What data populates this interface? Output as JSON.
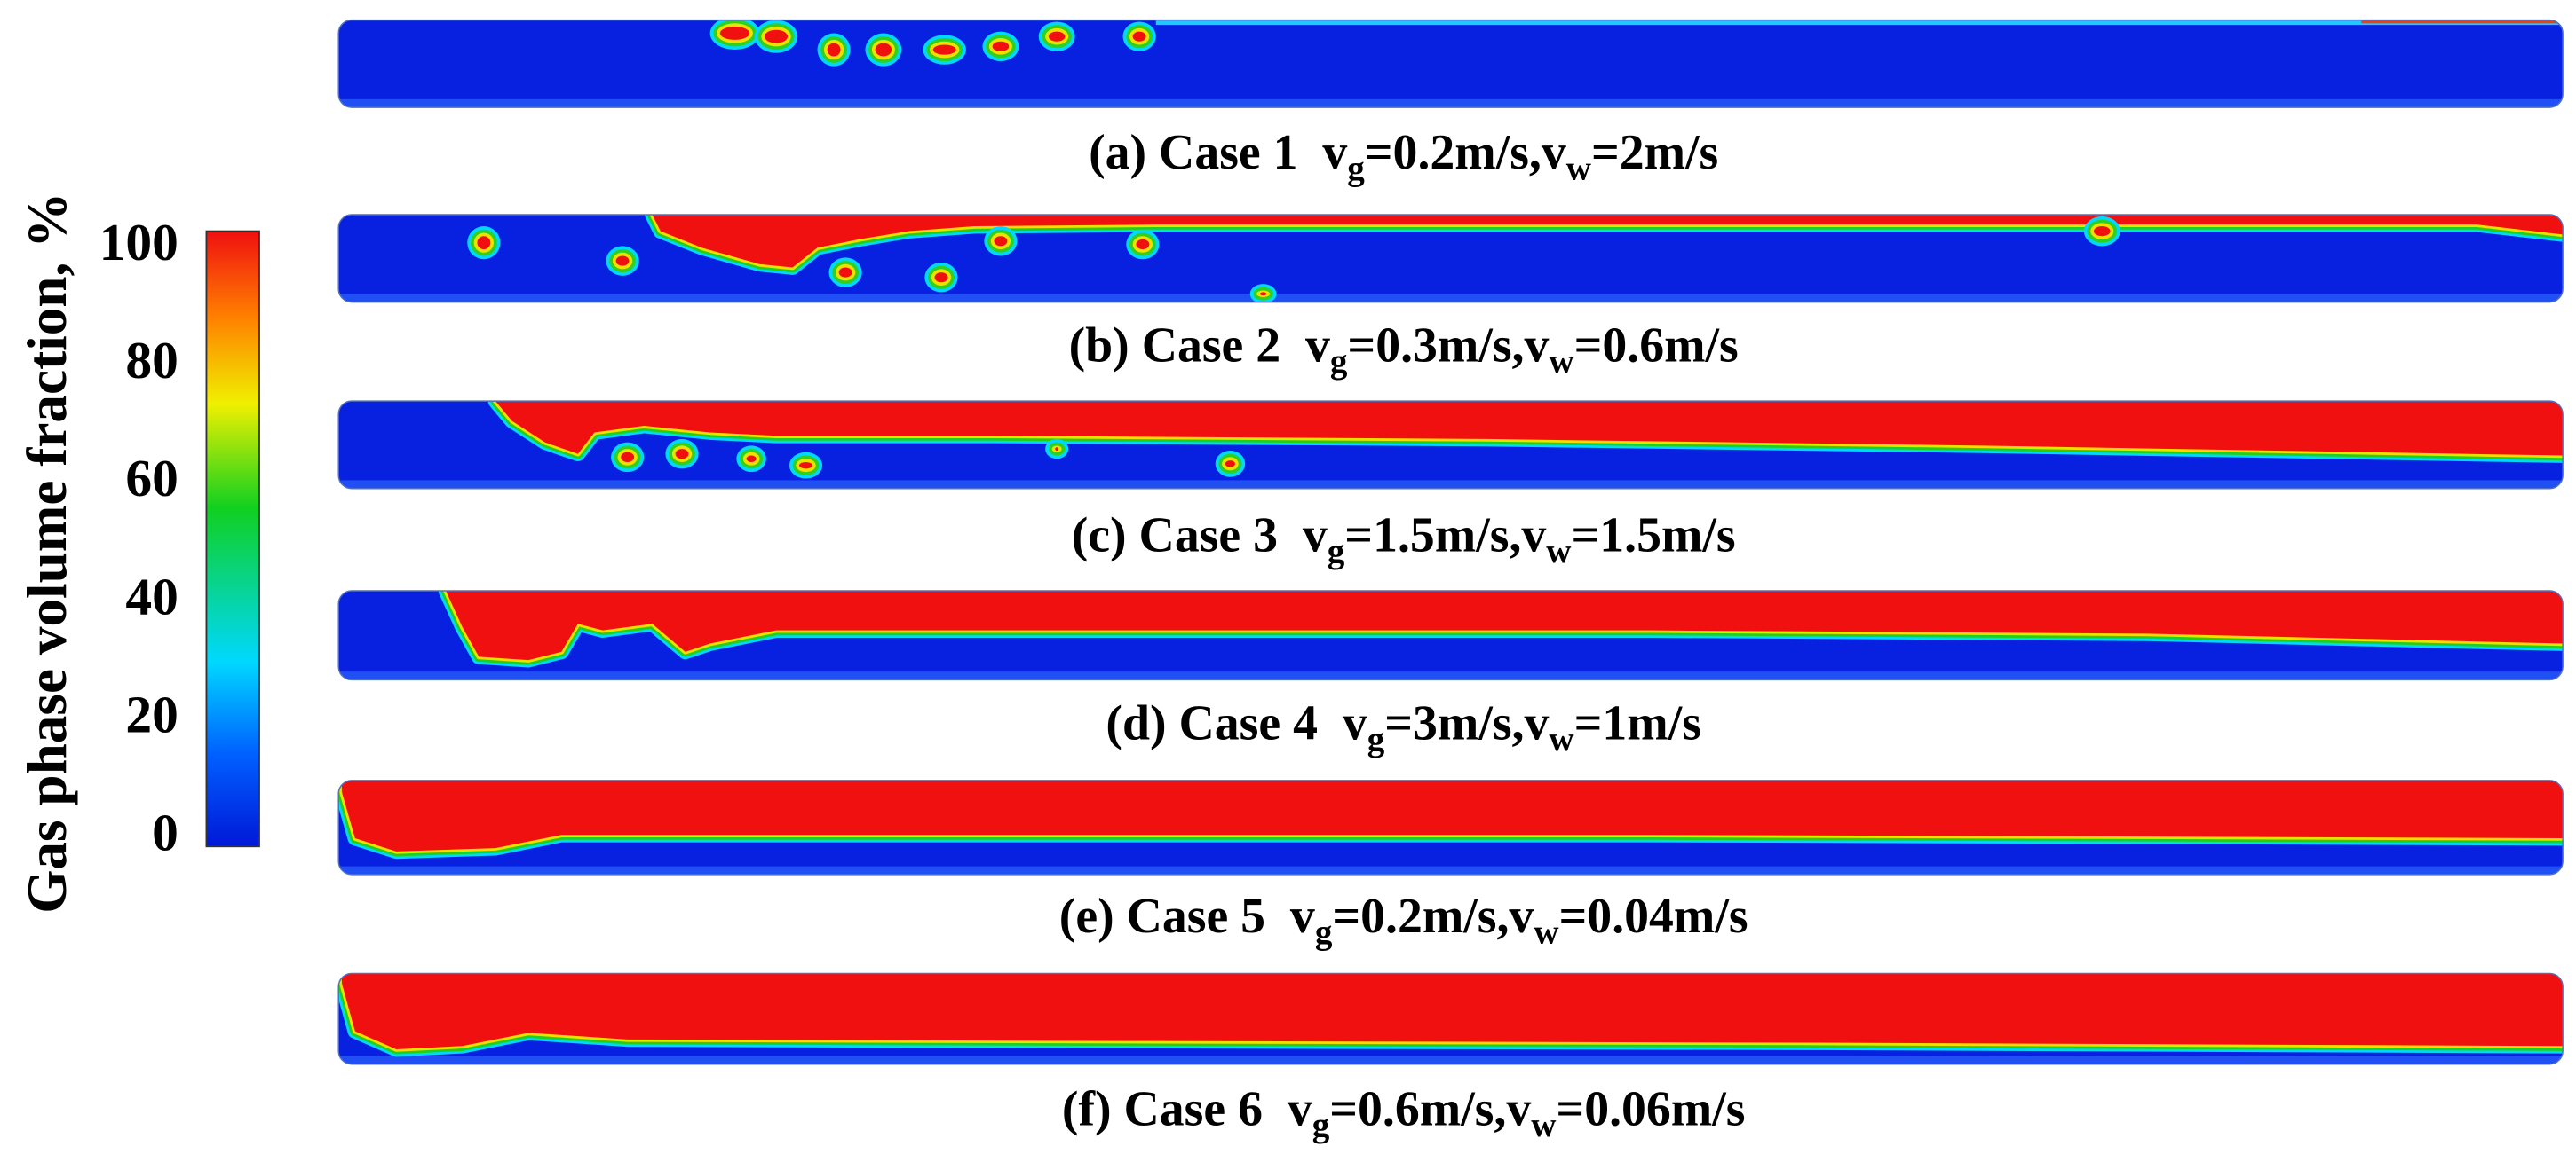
{
  "colorbar": {
    "label": "Gas phase volume fraction, %",
    "range": [
      0,
      100
    ],
    "ticks": [
      0,
      20,
      40,
      60,
      80,
      100
    ]
  },
  "panels": [
    {
      "caption": [
        {
          "text": "(a) Case 1  v"
        },
        {
          "text": "g",
          "sub": true
        },
        {
          "text": "=0.2m/s,v"
        },
        {
          "text": "w",
          "sub": true
        },
        {
          "text": "=2m/s"
        }
      ]
    },
    {
      "caption": [
        {
          "text": "(b) Case 2  v"
        },
        {
          "text": "g",
          "sub": true
        },
        {
          "text": "=0.3m/s,v"
        },
        {
          "text": "w",
          "sub": true
        },
        {
          "text": "=0.6m/s"
        }
      ]
    },
    {
      "caption": [
        {
          "text": "(c) Case 3  v"
        },
        {
          "text": "g",
          "sub": true
        },
        {
          "text": "=1.5m/s,v"
        },
        {
          "text": "w",
          "sub": true
        },
        {
          "text": "=1.5m/s"
        }
      ]
    },
    {
      "caption": [
        {
          "text": "(d) Case 4  v"
        },
        {
          "text": "g",
          "sub": true
        },
        {
          "text": "=3m/s,v"
        },
        {
          "text": "w",
          "sub": true
        },
        {
          "text": "=1m/s"
        }
      ]
    },
    {
      "caption": [
        {
          "text": "(e) Case 5  v"
        },
        {
          "text": "g",
          "sub": true
        },
        {
          "text": "=0.2m/s,v"
        },
        {
          "text": "w",
          "sub": true
        },
        {
          "text": "=0.04m/s"
        }
      ]
    },
    {
      "caption": [
        {
          "text": "(f) Case 6  v"
        },
        {
          "text": "g",
          "sub": true
        },
        {
          "text": "=0.6m/s,v"
        },
        {
          "text": "w",
          "sub": true
        },
        {
          "text": "=0.06m/s"
        }
      ]
    }
  ]
}
